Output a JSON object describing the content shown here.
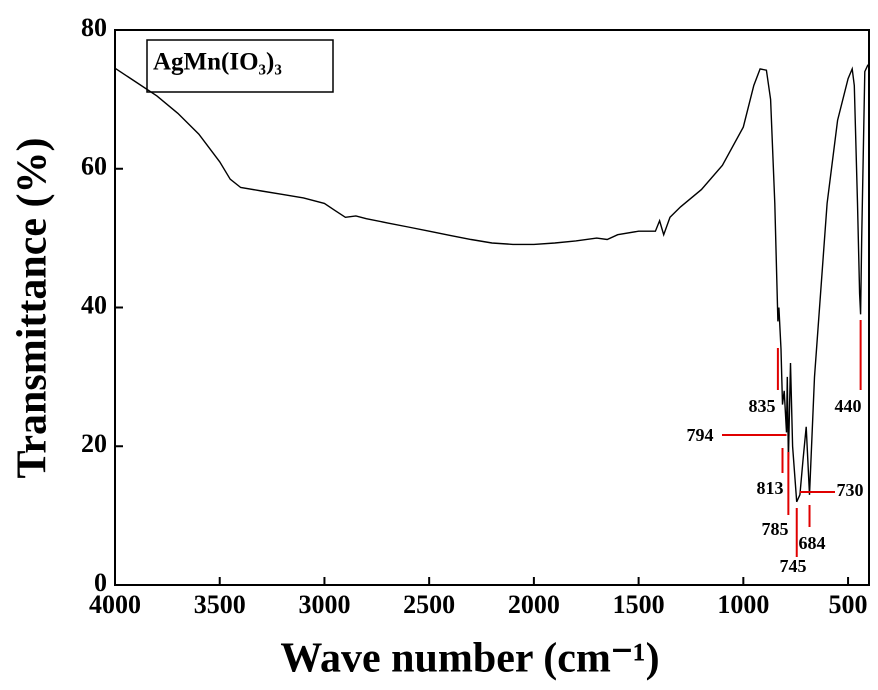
{
  "chart_data": {
    "type": "line",
    "title": "AgMn(IO₃)₃",
    "x_label": "Wave number (cm⁻¹)",
    "y_label": "Transmittance (%)",
    "xlim": [
      4000,
      400
    ],
    "ylim": [
      0,
      80
    ],
    "xticks": [
      4000,
      3500,
      3000,
      2500,
      2000,
      1500,
      1000,
      500
    ],
    "yticks": [
      0,
      20,
      40,
      60,
      80
    ],
    "series": [
      {
        "name": "AgMn(IO₃)₃",
        "color": "#000000",
        "x": [
          4000,
          3900,
          3800,
          3700,
          3600,
          3500,
          3450,
          3400,
          3300,
          3200,
          3100,
          3000,
          2950,
          2900,
          2850,
          2800,
          2700,
          2600,
          2500,
          2400,
          2300,
          2200,
          2100,
          2000,
          1900,
          1800,
          1700,
          1650,
          1600,
          1500,
          1420,
          1400,
          1380,
          1350,
          1300,
          1200,
          1100,
          1000,
          950,
          920,
          890,
          870,
          850,
          840,
          835,
          830,
          820,
          813,
          805,
          794,
          790,
          785,
          775,
          765,
          745,
          730,
          715,
          700,
          684,
          660,
          600,
          550,
          500,
          480,
          470,
          455,
          445,
          440,
          435,
          420,
          405
        ],
        "values": [
          74.5,
          72.5,
          70.5,
          68,
          65,
          61,
          58.5,
          57.3,
          56.8,
          56.3,
          55.8,
          55,
          54,
          53,
          53.2,
          52.8,
          52.2,
          51.6,
          51,
          50.4,
          49.8,
          49.3,
          49.1,
          49.1,
          49.3,
          49.6,
          50,
          49.8,
          50.5,
          51,
          51,
          52.5,
          50.5,
          53,
          54.5,
          57,
          60.5,
          66,
          72,
          74.4,
          74.2,
          70,
          55,
          44,
          38,
          40,
          34,
          26,
          28,
          22,
          30,
          18,
          32,
          20,
          12,
          13,
          18,
          22.8,
          13,
          30,
          55,
          67,
          73,
          74.4,
          72,
          55,
          42,
          39,
          50,
          74,
          75
        ]
      }
    ],
    "annotations": [
      {
        "x": 835,
        "label": "835",
        "color": "#e00000"
      },
      {
        "x": 794,
        "label": "794",
        "color": "#e00000"
      },
      {
        "x": 813,
        "label": "813",
        "color": "#e00000"
      },
      {
        "x": 785,
        "label": "785",
        "color": "#e00000"
      },
      {
        "x": 745,
        "label": "745",
        "color": "#e00000"
      },
      {
        "x": 684,
        "label": "684",
        "color": "#e00000"
      },
      {
        "x": 730,
        "label": "730",
        "color": "#e00000"
      },
      {
        "x": 440,
        "label": "440",
        "color": "#e00000"
      }
    ]
  }
}
